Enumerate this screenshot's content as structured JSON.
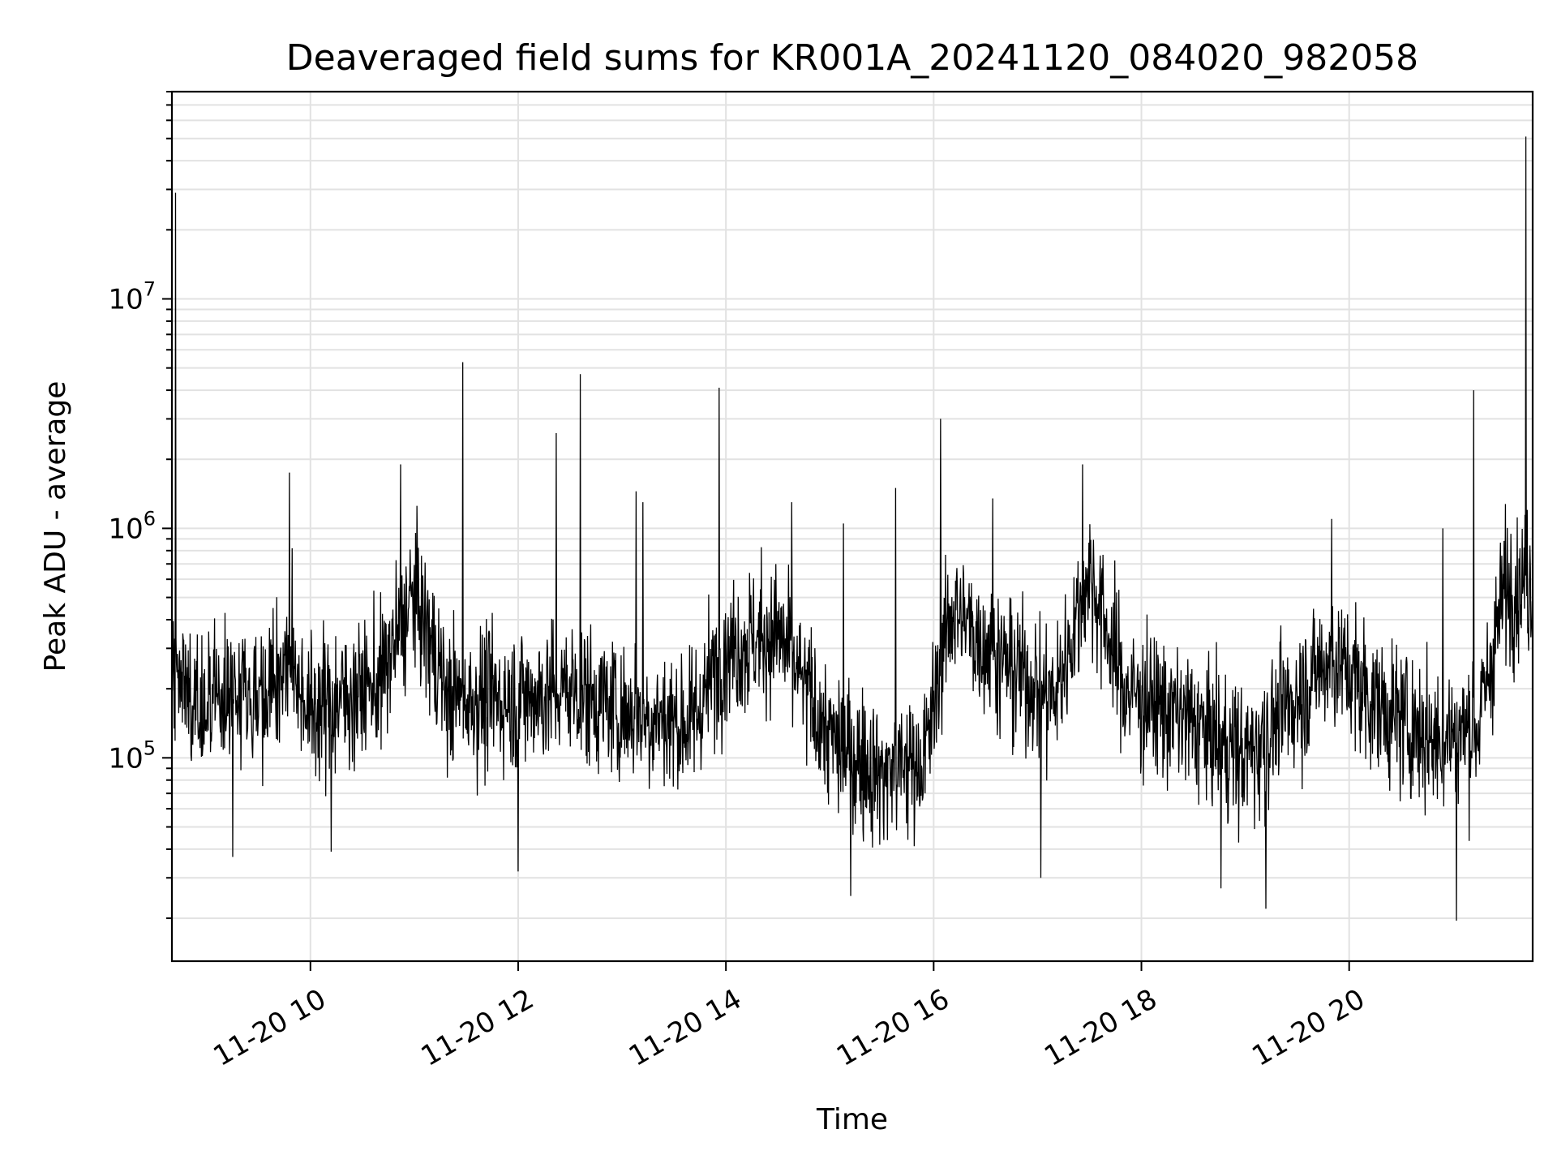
{
  "chart_data": {
    "type": "line",
    "title": "Deaveraged field sums for KR001A_20241120_084020_982058",
    "xlabel": "Time",
    "ylabel": "Peak ADU - average",
    "x_axis": {
      "type": "datetime",
      "min": "2024-11-20 08:40",
      "max": "2024-11-20 21:46",
      "ticks": [
        {
          "value": "2024-11-20 10:00",
          "label": "11-20 10"
        },
        {
          "value": "2024-11-20 12:00",
          "label": "11-20 12"
        },
        {
          "value": "2024-11-20 14:00",
          "label": "11-20 14"
        },
        {
          "value": "2024-11-20 16:00",
          "label": "11-20 16"
        },
        {
          "value": "2024-11-20 18:00",
          "label": "11-20 18"
        },
        {
          "value": "2024-11-20 20:00",
          "label": "11-20 20"
        }
      ]
    },
    "y_axis": {
      "scale": "log",
      "min": 13000,
      "max": 80000000,
      "ticks": [
        {
          "value": 100000,
          "base": "10",
          "exp": "5"
        },
        {
          "value": 1000000,
          "base": "10",
          "exp": "6"
        },
        {
          "value": 10000000,
          "base": "10",
          "exp": "7"
        }
      ]
    },
    "grid": true,
    "series_color": "#000000",
    "trend": [
      {
        "t": "2024-11-20 08:40",
        "v": 250000
      },
      {
        "t": "2024-11-20 09:00",
        "v": 180000
      },
      {
        "t": "2024-11-20 09:30",
        "v": 200000
      },
      {
        "t": "2024-11-20 09:50",
        "v": 260000
      },
      {
        "t": "2024-11-20 10:00",
        "v": 160000
      },
      {
        "t": "2024-11-20 10:40",
        "v": 210000
      },
      {
        "t": "2024-11-20 11:00",
        "v": 520000
      },
      {
        "t": "2024-11-20 11:20",
        "v": 180000
      },
      {
        "t": "2024-11-20 12:00",
        "v": 180000
      },
      {
        "t": "2024-11-20 12:30",
        "v": 200000
      },
      {
        "t": "2024-11-20 13:00",
        "v": 160000
      },
      {
        "t": "2024-11-20 13:40",
        "v": 140000
      },
      {
        "t": "2024-11-20 14:00",
        "v": 300000
      },
      {
        "t": "2024-11-20 14:30",
        "v": 350000
      },
      {
        "t": "2024-11-20 15:00",
        "v": 120000
      },
      {
        "t": "2024-11-20 15:30",
        "v": 85000
      },
      {
        "t": "2024-11-20 15:55",
        "v": 100000
      },
      {
        "t": "2024-11-20 16:10",
        "v": 450000
      },
      {
        "t": "2024-11-20 16:40",
        "v": 260000
      },
      {
        "t": "2024-11-20 17:10",
        "v": 180000
      },
      {
        "t": "2024-11-20 17:30",
        "v": 650000
      },
      {
        "t": "2024-11-20 17:50",
        "v": 200000
      },
      {
        "t": "2024-11-20 18:30",
        "v": 140000
      },
      {
        "t": "2024-11-20 19:00",
        "v": 100000
      },
      {
        "t": "2024-11-20 19:20",
        "v": 150000
      },
      {
        "t": "2024-11-20 19:50",
        "v": 280000
      },
      {
        "t": "2024-11-20 20:20",
        "v": 160000
      },
      {
        "t": "2024-11-20 20:50",
        "v": 120000
      },
      {
        "t": "2024-11-20 21:15",
        "v": 140000
      },
      {
        "t": "2024-11-20 21:30",
        "v": 550000
      },
      {
        "t": "2024-11-20 21:46",
        "v": 600000
      }
    ],
    "peaks": [
      {
        "t": "2024-11-20 08:42",
        "v": 29000000
      },
      {
        "t": "2024-11-20 09:48",
        "v": 1750000
      },
      {
        "t": "2024-11-20 10:52",
        "v": 1900000
      },
      {
        "t": "2024-11-20 11:28",
        "v": 5300000
      },
      {
        "t": "2024-11-20 12:22",
        "v": 2600000
      },
      {
        "t": "2024-11-20 12:36",
        "v": 4700000
      },
      {
        "t": "2024-11-20 13:08",
        "v": 1450000
      },
      {
        "t": "2024-11-20 13:12",
        "v": 1300000
      },
      {
        "t": "2024-11-20 13:56",
        "v": 4100000
      },
      {
        "t": "2024-11-20 14:38",
        "v": 1300000
      },
      {
        "t": "2024-11-20 15:08",
        "v": 1050000
      },
      {
        "t": "2024-11-20 15:38",
        "v": 1500000
      },
      {
        "t": "2024-11-20 16:04",
        "v": 3000000
      },
      {
        "t": "2024-11-20 16:34",
        "v": 1350000
      },
      {
        "t": "2024-11-20 17:26",
        "v": 1900000
      },
      {
        "t": "2024-11-20 19:50",
        "v": 1100000
      },
      {
        "t": "2024-11-20 20:54",
        "v": 1000000
      },
      {
        "t": "2024-11-20 21:12",
        "v": 4000000
      },
      {
        "t": "2024-11-20 21:42",
        "v": 51000000
      }
    ],
    "dips": [
      {
        "t": "2024-11-20 09:15",
        "v": 37000
      },
      {
        "t": "2024-11-20 10:12",
        "v": 39000
      },
      {
        "t": "2024-11-20 12:00",
        "v": 32000
      },
      {
        "t": "2024-11-20 15:12",
        "v": 25000
      },
      {
        "t": "2024-11-20 17:02",
        "v": 30000
      },
      {
        "t": "2024-11-20 18:46",
        "v": 27000
      },
      {
        "t": "2024-11-20 19:12",
        "v": 22000
      },
      {
        "t": "2024-11-20 21:02",
        "v": 19500
      }
    ]
  }
}
